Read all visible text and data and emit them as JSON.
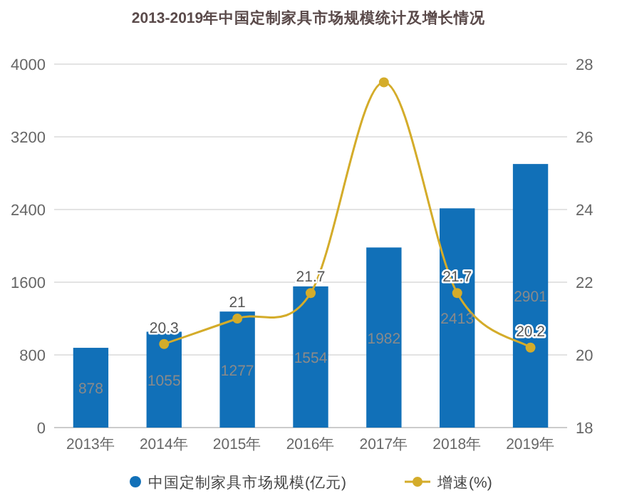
{
  "chart_data": {
    "type": "bar",
    "title": "2013-2019年中国定制家具市场规模统计及增长情况",
    "categories": [
      "2013年",
      "2014年",
      "2015年",
      "2016年",
      "2017年",
      "2018年",
      "2019年"
    ],
    "series": [
      {
        "name": "中国定制家具市场规模(亿元)",
        "color": "#1170b8",
        "values": [
          878,
          1055,
          1277,
          1554,
          1982,
          2413,
          2901
        ],
        "value_labels": [
          "878",
          "1055",
          "1277",
          "1554",
          "1982",
          "2413",
          "2901"
        ]
      },
      {
        "name": "增速(%)",
        "type": "line",
        "axis": "y2",
        "color": "#d4ac2a",
        "marker": "circle",
        "values": [
          null,
          20.3,
          21,
          21.7,
          27.5,
          21.7,
          20.2
        ],
        "value_labels": [
          null,
          "20.3",
          "21",
          "21.7",
          null,
          "21.7",
          "20.2"
        ]
      }
    ],
    "ylim": [
      0,
      4000
    ],
    "yticks": [
      0,
      800,
      1600,
      2400,
      3200,
      4000
    ],
    "y2lim": [
      18,
      28
    ],
    "y2ticks": [
      18,
      20,
      22,
      24,
      26,
      28
    ],
    "grid": "y",
    "legend": "bottom"
  }
}
